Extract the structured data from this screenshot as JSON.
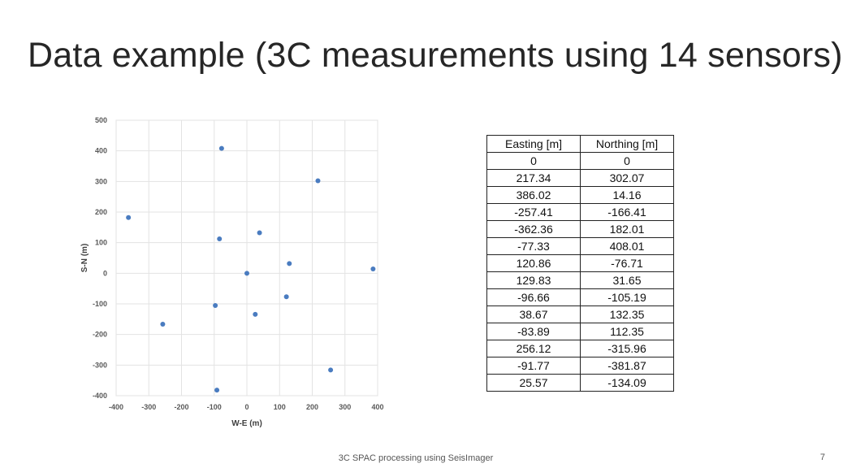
{
  "slide": {
    "title": "Data example (3C measurements using 14 sensors)",
    "footer": "3C SPAC processing using SeisImager",
    "page_number": "7"
  },
  "chart_data": {
    "type": "scatter",
    "xlabel": "W-E (m)",
    "ylabel": "S-N (m)",
    "xlim": [
      -400,
      400
    ],
    "ylim": [
      -400,
      500
    ],
    "xticks": [
      -400,
      -300,
      -200,
      -100,
      0,
      100,
      200,
      300,
      400
    ],
    "yticks": [
      -400,
      -300,
      -200,
      -100,
      0,
      100,
      200,
      300,
      400,
      500
    ],
    "grid": true,
    "point_color": "#4a7cc0",
    "points": [
      {
        "x": 0,
        "y": 0
      },
      {
        "x": 217.34,
        "y": 302.07
      },
      {
        "x": 386.02,
        "y": 14.16
      },
      {
        "x": -257.41,
        "y": -166.41
      },
      {
        "x": -362.36,
        "y": 182.01
      },
      {
        "x": -77.33,
        "y": 408.01
      },
      {
        "x": 120.86,
        "y": -76.71
      },
      {
        "x": 129.83,
        "y": 31.65
      },
      {
        "x": -96.66,
        "y": -105.19
      },
      {
        "x": 38.67,
        "y": 132.35
      },
      {
        "x": -83.89,
        "y": 112.35
      },
      {
        "x": 256.12,
        "y": -315.96
      },
      {
        "x": -91.77,
        "y": -381.87
      },
      {
        "x": 25.57,
        "y": -134.09
      }
    ]
  },
  "table": {
    "headers": [
      "Easting [m]",
      "Northing [m]"
    ],
    "rows": [
      [
        "0",
        "0"
      ],
      [
        "217.34",
        "302.07"
      ],
      [
        "386.02",
        "14.16"
      ],
      [
        "-257.41",
        "-166.41"
      ],
      [
        "-362.36",
        "182.01"
      ],
      [
        "-77.33",
        "408.01"
      ],
      [
        "120.86",
        "-76.71"
      ],
      [
        "129.83",
        "31.65"
      ],
      [
        "-96.66",
        "-105.19"
      ],
      [
        "38.67",
        "132.35"
      ],
      [
        "-83.89",
        "112.35"
      ],
      [
        "256.12",
        "-315.96"
      ],
      [
        "-91.77",
        "-381.87"
      ],
      [
        "25.57",
        "-134.09"
      ]
    ]
  }
}
